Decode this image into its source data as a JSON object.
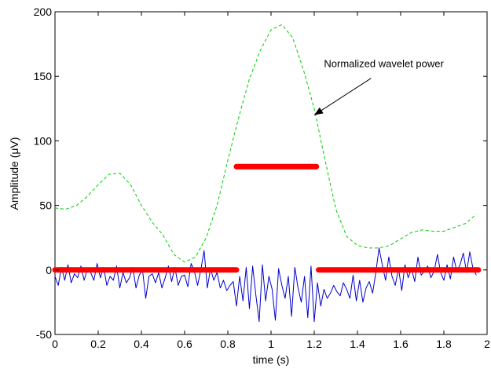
{
  "chart_data": {
    "type": "line",
    "title": "",
    "xlabel": "time (s)",
    "ylabel": "Amplitude (μV)",
    "xlim": [
      0,
      2
    ],
    "ylim": [
      -50,
      200
    ],
    "x_ticks": [
      0,
      0.2,
      0.4,
      0.6,
      0.8,
      1,
      1.2,
      1.4,
      1.6,
      1.8,
      2
    ],
    "x_tick_labels": [
      "0",
      "0.2",
      "0.4",
      "0.6",
      "0.8",
      "1",
      "1.2",
      "1.4",
      "1.6",
      "1.8",
      "2"
    ],
    "y_ticks": [
      -50,
      0,
      50,
      100,
      150,
      200
    ],
    "y_tick_labels": [
      "-50",
      "0",
      "50",
      "100",
      "150",
      "200"
    ],
    "grid": false,
    "annotations": [
      {
        "text": "Normalized wavelet power",
        "point_x": 1.2,
        "point_y": 120,
        "text_x": 1.245,
        "text_y": 157
      }
    ],
    "series": [
      {
        "style": "dashed",
        "color": "#00cc00",
        "x": [
          0,
          0.05,
          0.1,
          0.15,
          0.2,
          0.25,
          0.3,
          0.35,
          0.4,
          0.45,
          0.5,
          0.55,
          0.6,
          0.65,
          0.7,
          0.75,
          0.8,
          0.85,
          0.9,
          0.95,
          1.0,
          1.05,
          1.1,
          1.15,
          1.2,
          1.25,
          1.3,
          1.35,
          1.4,
          1.45,
          1.5,
          1.55,
          1.6,
          1.65,
          1.7,
          1.75,
          1.8,
          1.85,
          1.9,
          1.95
        ],
        "y": [
          48,
          47,
          50,
          57,
          66,
          74,
          75,
          66,
          50,
          37,
          27,
          12,
          6,
          10,
          25,
          50,
          85,
          118,
          148,
          170,
          186,
          190,
          180,
          155,
          125,
          85,
          47,
          26,
          19,
          17,
          17,
          19,
          24,
          29,
          31,
          30,
          30,
          33,
          36,
          43
        ]
      },
      {
        "style": "solid",
        "color": "#0000cc",
        "x": [
          0,
          0.015,
          0.03,
          0.045,
          0.06,
          0.075,
          0.09,
          0.105,
          0.12,
          0.135,
          0.15,
          0.165,
          0.18,
          0.195,
          0.21,
          0.225,
          0.24,
          0.255,
          0.27,
          0.285,
          0.3,
          0.315,
          0.33,
          0.345,
          0.36,
          0.375,
          0.39,
          0.405,
          0.42,
          0.435,
          0.45,
          0.465,
          0.48,
          0.495,
          0.51,
          0.525,
          0.54,
          0.555,
          0.57,
          0.585,
          0.6,
          0.615,
          0.63,
          0.645,
          0.66,
          0.675,
          0.69,
          0.705,
          0.72,
          0.735,
          0.75,
          0.765,
          0.78,
          0.795,
          0.81,
          0.825,
          0.84,
          0.855,
          0.87,
          0.885,
          0.9,
          0.915,
          0.93,
          0.945,
          0.96,
          0.975,
          0.99,
          1.005,
          1.02,
          1.035,
          1.05,
          1.065,
          1.08,
          1.095,
          1.11,
          1.125,
          1.14,
          1.155,
          1.17,
          1.185,
          1.2,
          1.215,
          1.23,
          1.245,
          1.26,
          1.275,
          1.29,
          1.305,
          1.32,
          1.335,
          1.35,
          1.365,
          1.38,
          1.395,
          1.41,
          1.425,
          1.44,
          1.455,
          1.47,
          1.485,
          1.5,
          1.515,
          1.53,
          1.545,
          1.56,
          1.575,
          1.59,
          1.605,
          1.62,
          1.635,
          1.65,
          1.665,
          1.68,
          1.695,
          1.71,
          1.725,
          1.74,
          1.755,
          1.77,
          1.785,
          1.8,
          1.815,
          1.83,
          1.845,
          1.86,
          1.875,
          1.89,
          1.905,
          1.92,
          1.935,
          1.95
        ],
        "y": [
          -5,
          -12,
          2,
          -8,
          4,
          -10,
          -3,
          -6,
          3,
          -8,
          1,
          -2,
          -8,
          5,
          -6,
          2,
          -12,
          -5,
          -8,
          3,
          -14,
          -2,
          -10,
          -6,
          2,
          -14,
          -4,
          0,
          -22,
          -5,
          -3,
          -10,
          -2,
          -14,
          -6,
          3,
          -9,
          2,
          -12,
          -5,
          -4,
          -13,
          5,
          -1,
          -12,
          0,
          15,
          -14,
          1,
          -8,
          -2,
          -14,
          -8,
          -16,
          -12,
          -9,
          -28,
          -5,
          -24,
          2,
          -30,
          3,
          -20,
          -40,
          4,
          -24,
          -5,
          -15,
          -39,
          1,
          -12,
          -22,
          -5,
          -36,
          2,
          -14,
          -25,
          -5,
          -37,
          3,
          -40,
          -10,
          -28,
          -15,
          -22,
          -18,
          -12,
          -17,
          -20,
          -10,
          -15,
          -22,
          -4,
          -24,
          -8,
          -25,
          -14,
          -9,
          -18,
          -2,
          17,
          4,
          -8,
          10,
          -5,
          -12,
          1,
          -16,
          4,
          -6,
          1,
          -9,
          10,
          -4,
          -1,
          3,
          -6,
          -1,
          12,
          -2,
          -8,
          4,
          -7,
          10,
          -1,
          4,
          13,
          -2,
          14,
          1,
          -4
        ]
      },
      {
        "style": "thick-dots",
        "color": "#ff0000",
        "segments": [
          {
            "x": [
              0.0,
              0.84
            ],
            "y": [
              0,
              0
            ]
          },
          {
            "x": [
              0.84,
              1.21
            ],
            "y": [
              80,
              80
            ]
          },
          {
            "x": [
              1.22,
              1.96
            ],
            "y": [
              0,
              0
            ]
          }
        ]
      }
    ]
  }
}
